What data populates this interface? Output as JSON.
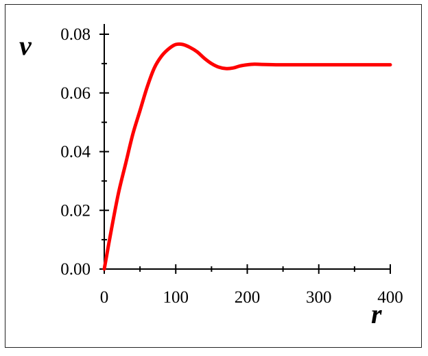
{
  "chart_data": {
    "type": "line",
    "title": "",
    "xlabel": "r",
    "ylabel": "v",
    "xlim": [
      0,
      400
    ],
    "ylim": [
      0,
      0.08
    ],
    "x_ticks": [
      0,
      100,
      200,
      300,
      400
    ],
    "x_tick_labels": [
      "0",
      "100",
      "200",
      "300",
      "400"
    ],
    "y_ticks": [
      0,
      0.02,
      0.04,
      0.06,
      0.08
    ],
    "y_tick_labels": [
      "0.00",
      "0.02",
      "0.04",
      "0.06",
      "0.08"
    ],
    "grid": false,
    "legend": false,
    "series": [
      {
        "color": "#ff0000",
        "x": [
          0,
          10,
          20,
          30,
          40,
          50,
          60,
          70,
          80,
          90,
          100,
          110,
          120,
          130,
          140,
          150,
          160,
          170,
          180,
          190,
          200,
          210,
          220,
          240,
          260,
          300,
          350,
          400
        ],
        "y": [
          0,
          0.0135,
          0.026,
          0.036,
          0.046,
          0.054,
          0.062,
          0.0685,
          0.0725,
          0.075,
          0.0765,
          0.0765,
          0.0755,
          0.074,
          0.0718,
          0.07,
          0.0688,
          0.0683,
          0.0685,
          0.0692,
          0.0696,
          0.0698,
          0.0697,
          0.0696,
          0.0696,
          0.0696,
          0.0696,
          0.0696
        ]
      }
    ]
  }
}
